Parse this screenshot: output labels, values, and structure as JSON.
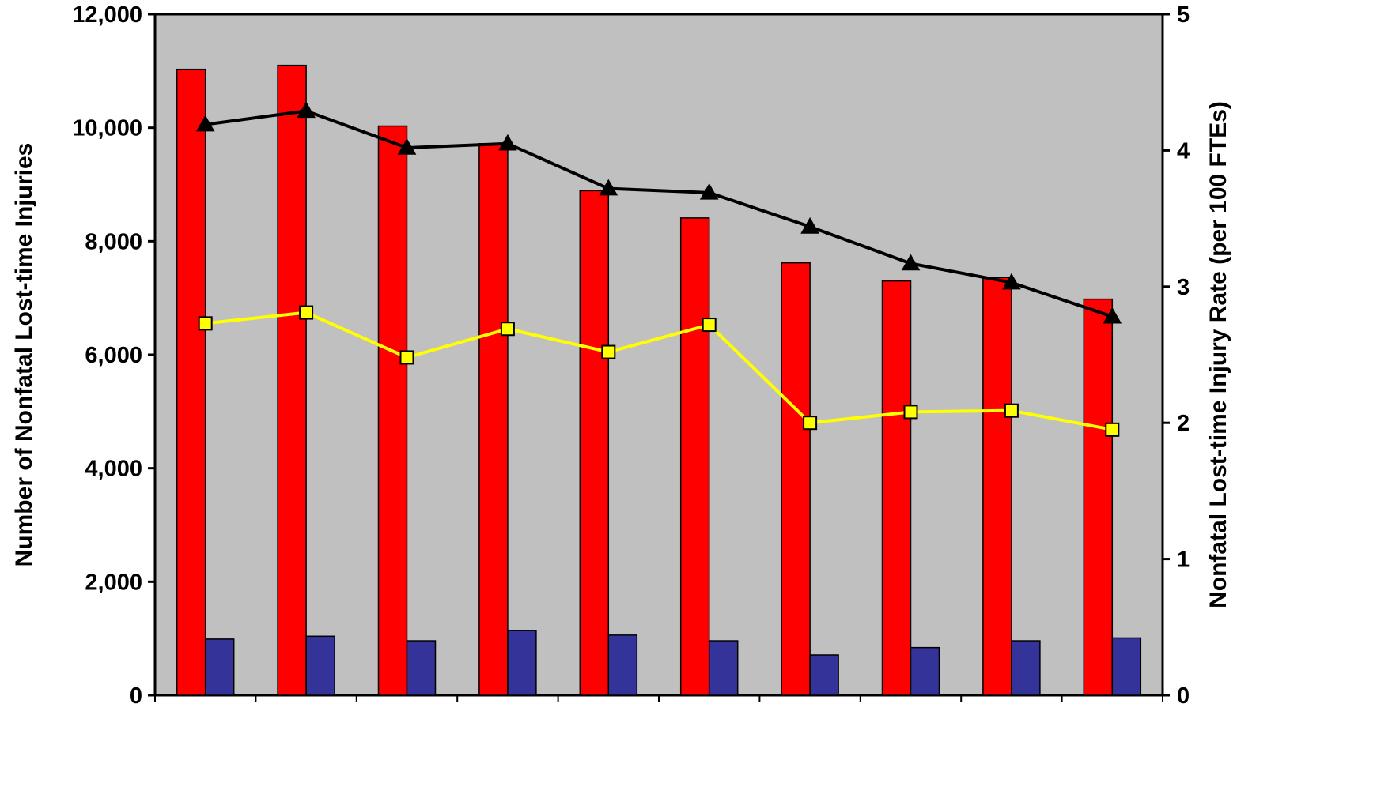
{
  "chart_data": {
    "type": "bar",
    "title": "",
    "categories": [
      "",
      "",
      "",
      "",
      "",
      "",
      "",
      "",
      "",
      ""
    ],
    "y_left": {
      "label": "Number of Nonfatal Lost-time Injuries",
      "lim": [
        0,
        12000
      ],
      "ticks": [
        0,
        2000,
        4000,
        6000,
        8000,
        10000,
        12000
      ],
      "tick_labels": [
        "0",
        "2,000",
        "4,000",
        "6,000",
        "8,000",
        "10,000",
        "12,000"
      ]
    },
    "y_right": {
      "label": "Nonfatal Lost-time Injury Rate (per 100 FTEs)",
      "lim": [
        0,
        5
      ],
      "ticks": [
        0,
        1,
        2,
        3,
        4,
        5
      ],
      "tick_labels": [
        "0",
        "1",
        "2",
        "3",
        "4",
        "5"
      ]
    },
    "grid": false,
    "legend": "none",
    "plot_background": "#c0c0c0",
    "series": [
      {
        "type": "bar",
        "axis": "left",
        "color": "#ff0000",
        "values": [
          11030,
          11100,
          10030,
          9720,
          8890,
          8410,
          7620,
          7300,
          7360,
          6980
        ]
      },
      {
        "type": "bar",
        "axis": "left",
        "color": "#333399",
        "values": [
          990,
          1040,
          960,
          1140,
          1060,
          960,
          710,
          840,
          960,
          1010
        ]
      },
      {
        "type": "line",
        "axis": "right",
        "color": "#000000",
        "marker": "triangle",
        "values": [
          4.19,
          4.29,
          4.02,
          4.05,
          3.72,
          3.69,
          3.44,
          3.17,
          3.03,
          2.78
        ]
      },
      {
        "type": "line",
        "axis": "right",
        "color": "#ffff00",
        "marker": "square",
        "marker_fill": "#ffff00",
        "marker_edge": "#000000",
        "values": [
          2.73,
          2.81,
          2.48,
          2.69,
          2.52,
          2.72,
          2.0,
          2.08,
          2.09,
          1.95
        ]
      }
    ]
  }
}
